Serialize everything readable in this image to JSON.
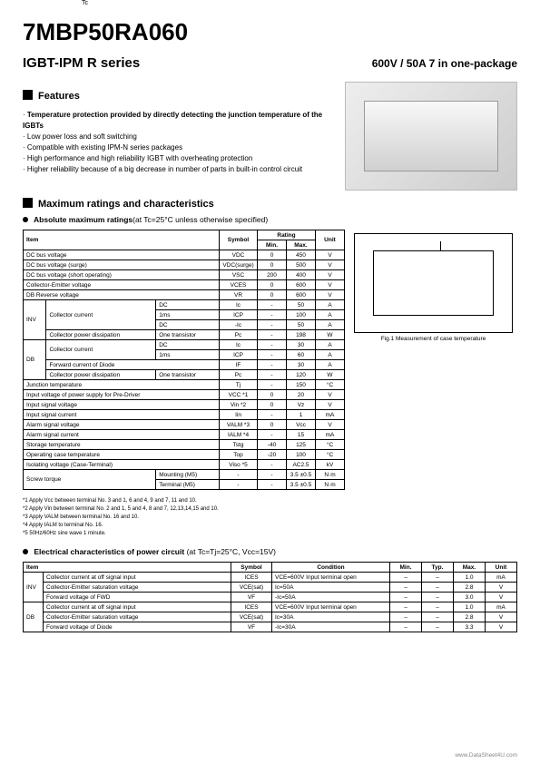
{
  "partNumber": "7MBP50RA060",
  "series": "IGBT-IPM  R series",
  "summary": "600V / 50A 7 in one-package",
  "featuresTitle": "Features",
  "features": [
    {
      "text": "Temperature protection provided by directly detecting the junction temperature of the IGBTs",
      "bold": true
    },
    {
      "text": "Low power loss and soft switching",
      "bold": false
    },
    {
      "text": "Compatible with existing IPM-N series packages",
      "bold": false
    },
    {
      "text": "High performance and high reliability IGBT with overheating protection",
      "bold": false
    },
    {
      "text": "Higher reliability because of a big decrease in number of parts in built-in control circuit",
      "bold": false
    }
  ],
  "maxTitle": "Maximum ratings and characteristics",
  "absTitle": "Absolute maximum ratings",
  "absCond": "(at Tc=25°C unless otherwise specified)",
  "t1": {
    "head": {
      "item": "Item",
      "symbol": "Symbol",
      "rating": "Rating",
      "min": "Min.",
      "max": "Max.",
      "unit": "Unit"
    },
    "rows": [
      {
        "item": "DC bus voltage",
        "sym": "VDC",
        "min": "0",
        "max": "450",
        "unit": "V"
      },
      {
        "item": "DC bus voltage (surge)",
        "sym": "VDC(surge)",
        "min": "0",
        "max": "500",
        "unit": "V"
      },
      {
        "item": "DC bus voltage (short operating)",
        "sym": "VSC",
        "min": "200",
        "max": "400",
        "unit": "V"
      },
      {
        "item": "Collector-Emitter voltage",
        "sym": "VCES",
        "min": "0",
        "max": "600",
        "unit": "V"
      },
      {
        "item": "DB Reverse voltage",
        "sym": "VR",
        "min": "0",
        "max": "600",
        "unit": "V"
      }
    ],
    "invCC": [
      {
        "label": "DC",
        "sym": "Ic",
        "min": "-",
        "max": "50",
        "unit": "A"
      },
      {
        "label": "1ms",
        "sym": "ICP",
        "min": "-",
        "max": "100",
        "unit": "A"
      },
      {
        "label": "DC",
        "sym": "-Ic",
        "min": "-",
        "max": "50",
        "unit": "A"
      }
    ],
    "invPD": {
      "label": "One transistor",
      "sym": "Pc",
      "min": "-",
      "max": "198",
      "unit": "W"
    },
    "dbCC": [
      {
        "label": "DC",
        "sym": "Ic",
        "min": "-",
        "max": "30",
        "unit": "A"
      },
      {
        "label": "1ms",
        "sym": "ICP",
        "min": "-",
        "max": "60",
        "unit": "A"
      }
    ],
    "dbFwd": {
      "item": "Forward current of Diode",
      "sym": "IF",
      "min": "-",
      "max": "30",
      "unit": "A"
    },
    "dbPD": {
      "label": "One transistor",
      "sym": "Pc",
      "min": "-",
      "max": "120",
      "unit": "W"
    },
    "rest": [
      {
        "item": "Junction temperature",
        "sym": "Tj",
        "min": "-",
        "max": "150",
        "unit": "°C"
      },
      {
        "item": "Input voltage of power supply for Pre-Driver",
        "sym": "VCC   *1",
        "min": "0",
        "max": "20",
        "unit": "V"
      },
      {
        "item": "Input signal voltage",
        "sym": "Vin    *2",
        "min": "0",
        "max": "Vz",
        "unit": "V"
      },
      {
        "item": "Input signal current",
        "sym": "Iin",
        "min": "-",
        "max": "1",
        "unit": "mA"
      },
      {
        "item": "Alarm signal voltage",
        "sym": "VALM *3",
        "min": "0",
        "max": "Vcc",
        "unit": "V"
      },
      {
        "item": "Alarm signal current",
        "sym": "IALM  *4",
        "min": "-",
        "max": "15",
        "unit": "mA"
      },
      {
        "item": "Storage temperature",
        "sym": "Tstg",
        "min": "-40",
        "max": "125",
        "unit": "°C"
      },
      {
        "item": "Operating case temperature",
        "sym": "Top",
        "min": "-20",
        "max": "100",
        "unit": "°C"
      },
      {
        "item": "Isolating voltage (Case-Terminal)",
        "sym": "Viso    *5",
        "min": "-",
        "max": "AC2.5",
        "unit": "kV"
      }
    ],
    "screw": [
      {
        "label": "Mounting (M5)",
        "min": "-",
        "max": "3.5 ±0.5",
        "unit": "N·m"
      },
      {
        "label": "Terminal  (M5)",
        "min": "-",
        "max": "3.5 ±0.5",
        "unit": "N·m"
      }
    ],
    "invLabel": "INV",
    "dbLabel": "DB",
    "ccLabel": "Collector current",
    "pdLabel": "Collector power dissipation",
    "screwLabel": "Screw torque"
  },
  "figTc": "Tc",
  "figCaption": "Fig.1  Measurement of case temperature",
  "notes": [
    "*1  Apply Vcc between terminal No. 3 and 1,  6 and 4,  9 and 7,  11 and 10.",
    "*2  Apply Vin  between terminal No. 2 and 1,  5 and 4,  8 and 7,  12,13,14,15 and 10.",
    "*3  Apply VALM between terminal No. 16 and 10.",
    "*4  Apply IALM to terminal No. 16.",
    "*5  50Hz/60Hz sine wave  1 minute."
  ],
  "elecTitle": "Electrical characteristics of power circuit",
  "elecCond": " (at Tc=Tj=25°C,  Vcc=15V)",
  "t2": {
    "head": {
      "item": "Item",
      "symbol": "Symbol",
      "cond": "Condition",
      "min": "Min.",
      "typ": "Typ.",
      "max": "Max.",
      "unit": "Unit"
    },
    "inv": [
      {
        "item": "Collector current at off signal input",
        "sym": "ICES",
        "cond": "VCE=600V Input terminal open",
        "min": "–",
        "typ": "–",
        "max": "1.0",
        "unit": "mA"
      },
      {
        "item": "Collector-Emitter saturation voltage",
        "sym": "VCE(sat)",
        "cond": "Ic=50A",
        "min": "–",
        "typ": "–",
        "max": "2.8",
        "unit": "V"
      },
      {
        "item": "Forward voltage of FWD",
        "sym": "VF",
        "cond": "-Ic=50A",
        "min": "–",
        "typ": "–",
        "max": "3.0",
        "unit": "V"
      }
    ],
    "db": [
      {
        "item": "Collector current at off signal input",
        "sym": "ICES",
        "cond": "VCE=600V Input terminal open",
        "min": "–",
        "typ": "–",
        "max": "1.0",
        "unit": "mA"
      },
      {
        "item": "Collector-Emitter saturation voltage",
        "sym": "VCE(sat)",
        "cond": "Ic=30A",
        "min": "–",
        "typ": "–",
        "max": "2.8",
        "unit": "V"
      },
      {
        "item": "Forward voltage of Diode",
        "sym": "VF",
        "cond": "-Ic=30A",
        "min": "–",
        "typ": "–",
        "max": "3.3",
        "unit": "V"
      }
    ],
    "invLabel": "INV",
    "dbLabel": "DB"
  },
  "footer": "www.DataSheet4U.com"
}
